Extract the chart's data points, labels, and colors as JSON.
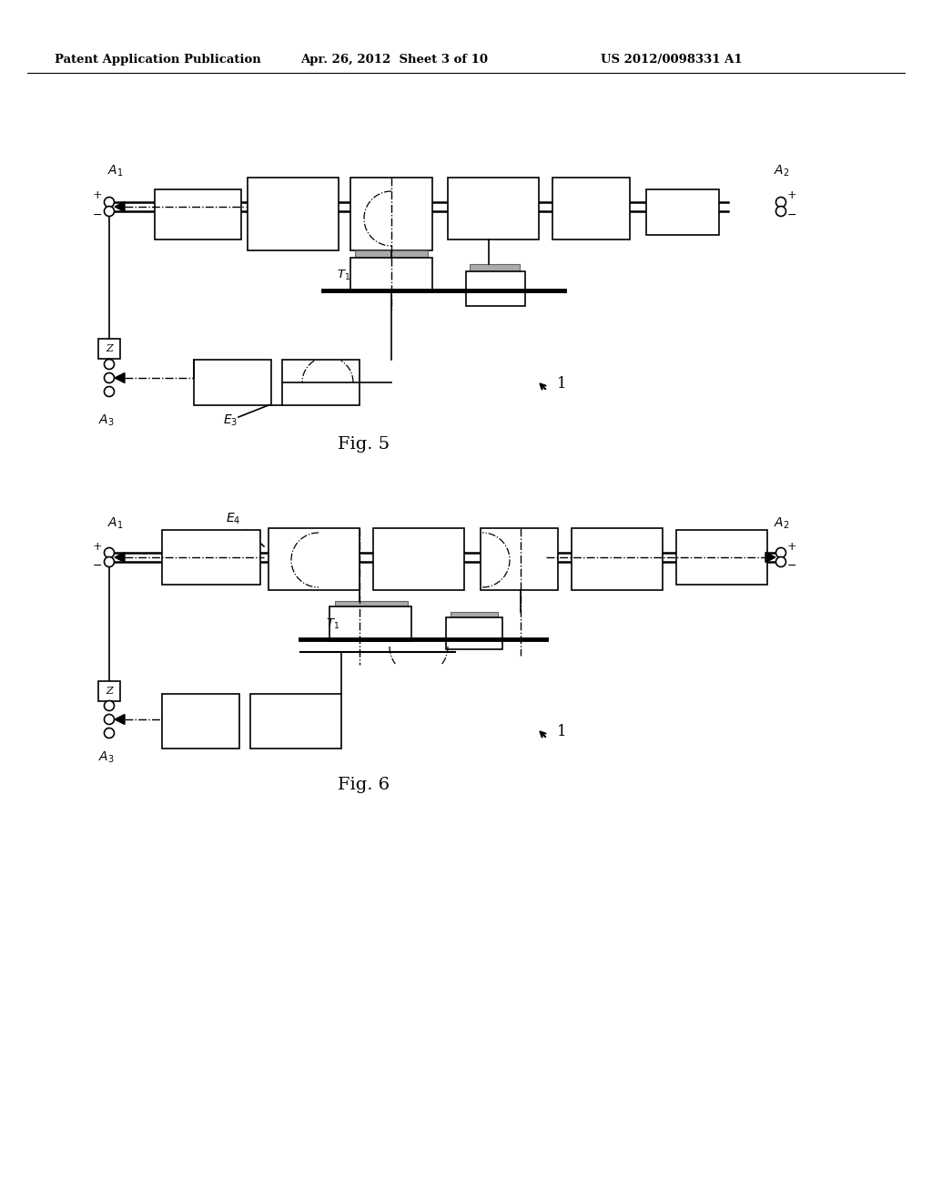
{
  "header_left": "Patent Application Publication",
  "header_center": "Apr. 26, 2012  Sheet 3 of 10",
  "header_right": "US 2012/0098331 A1",
  "fig5_label": "Fig. 5",
  "fig6_label": "Fig. 6",
  "bg_color": "#ffffff",
  "line_color": "#000000",
  "dark_fill": "#111111"
}
